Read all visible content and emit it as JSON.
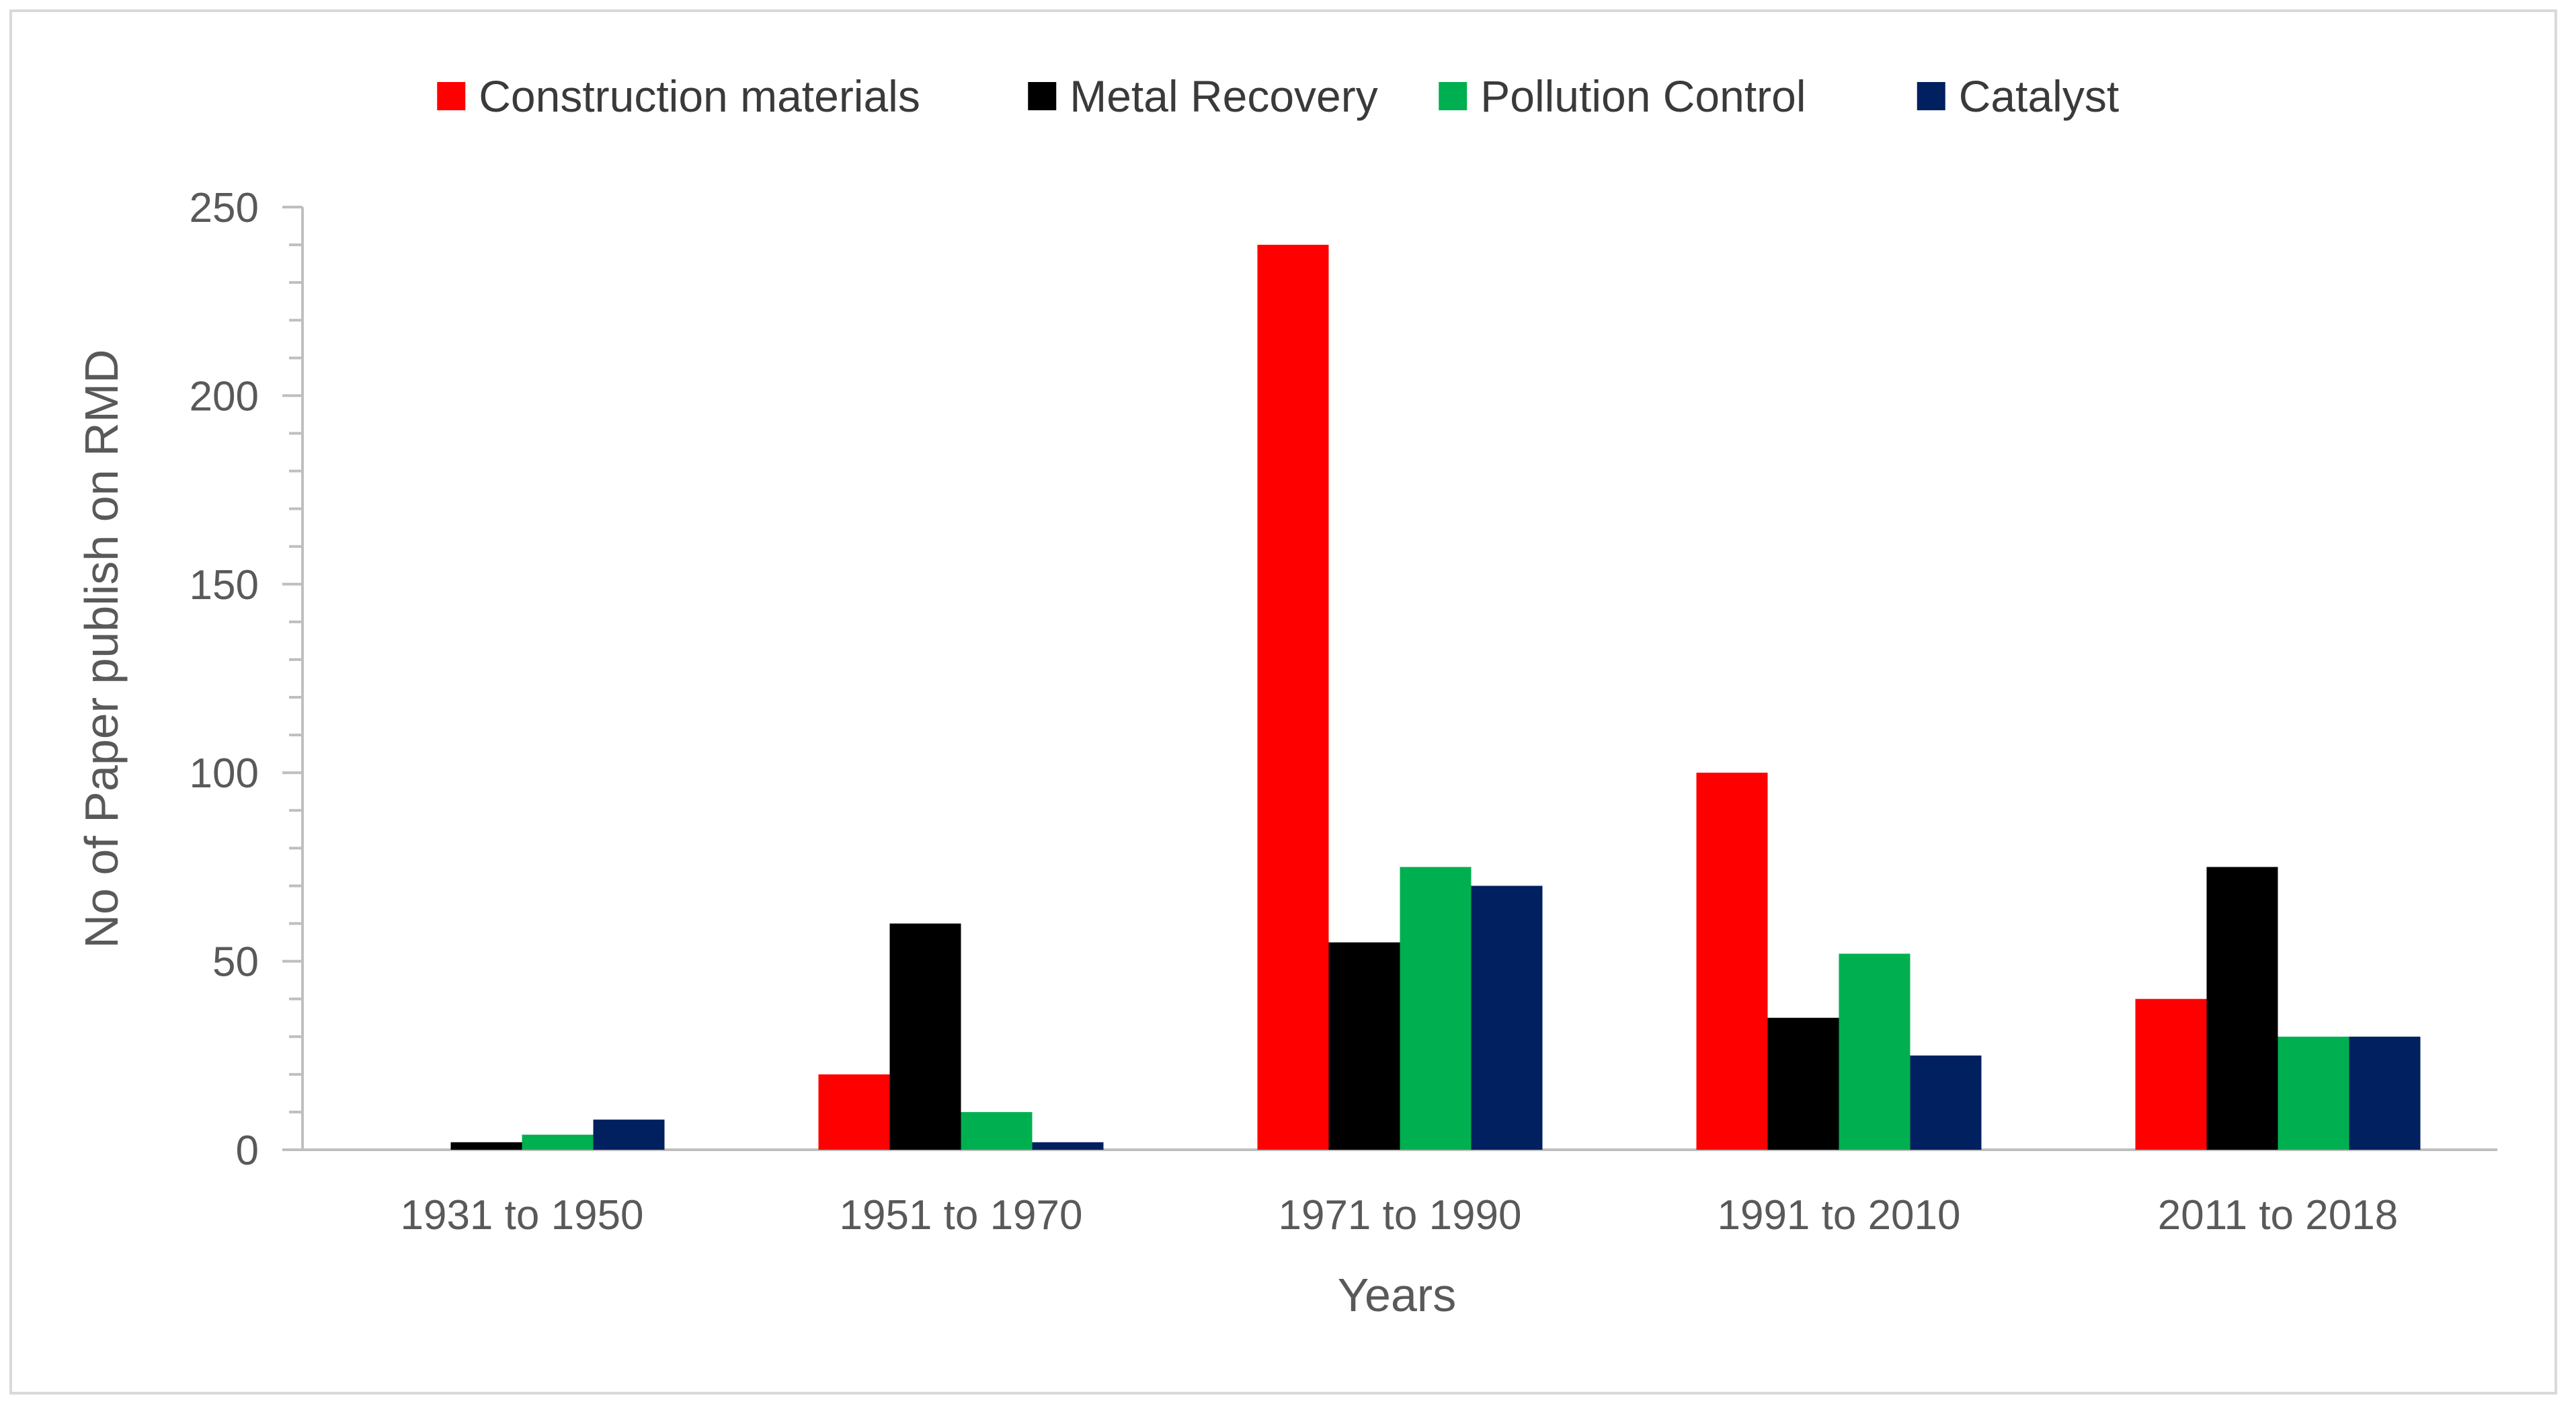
{
  "chart_data": {
    "type": "bar",
    "title": "",
    "xlabel": "Years",
    "ylabel": "No of Paper publish on RMD",
    "categories": [
      "1931 to 1950",
      "1951 to 1970",
      "1971 to 1990",
      "1991 to 2010",
      "2011 to 2018"
    ],
    "series": [
      {
        "name": "Construction materials",
        "color": "#ff0000",
        "values": [
          0,
          20,
          240,
          100,
          40
        ]
      },
      {
        "name": "Metal Recovery",
        "color": "#000000",
        "values": [
          2,
          60,
          55,
          35,
          75
        ]
      },
      {
        "name": "Pollution Control",
        "color": "#00b050",
        "values": [
          4,
          10,
          75,
          52,
          30
        ]
      },
      {
        "name": "Catalyst",
        "color": "#002060",
        "values": [
          8,
          2,
          70,
          25,
          30
        ]
      }
    ],
    "ylim": [
      0,
      250
    ],
    "yticks": [
      0,
      50,
      100,
      150,
      200,
      250
    ],
    "grid": false,
    "legend_position": "top"
  }
}
